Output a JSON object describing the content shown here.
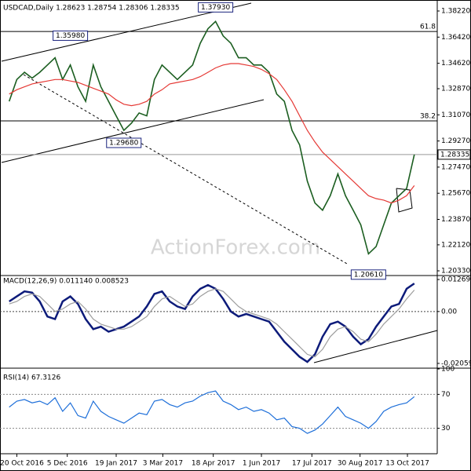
{
  "chart_data": [
    {
      "type": "line",
      "title": "USDCAD,Daily 1.28623 1.28754 1.28306 1.28335",
      "watermark": "ActionForex.com",
      "ylim": [
        1.2006,
        1.3876
      ],
      "yticks": [
        {
          "value": 1.3822,
          "label": "1.38220"
        },
        {
          "value": 1.3642,
          "label": "1.36420"
        },
        {
          "value": 1.3462,
          "label": "1.34620"
        },
        {
          "value": 1.3287,
          "label": "1.32870"
        },
        {
          "value": 1.3107,
          "label": "1.31070"
        },
        {
          "value": 1.2927,
          "label": "1.29270"
        },
        {
          "value": 1.2747,
          "label": "1.27470"
        },
        {
          "value": 1.2567,
          "label": "1.25670"
        },
        {
          "value": 1.2387,
          "label": "1.23870"
        },
        {
          "value": 1.2212,
          "label": "1.22120"
        },
        {
          "value": 1.2033,
          "label": "1.20330"
        }
      ],
      "last_price": 1.28335,
      "series": [
        {
          "name": "USDCAD",
          "color": "#1b5e20",
          "values": [
            1.32,
            1.335,
            1.34,
            1.336,
            1.34,
            1.345,
            1.35,
            1.335,
            1.345,
            1.33,
            1.32,
            1.345,
            1.33,
            1.32,
            1.31,
            1.3,
            1.305,
            1.312,
            1.31,
            1.335,
            1.345,
            1.34,
            1.335,
            1.34,
            1.345,
            1.36,
            1.37,
            1.375,
            1.365,
            1.36,
            1.35,
            1.35,
            1.345,
            1.345,
            1.34,
            1.325,
            1.32,
            1.3,
            1.29,
            1.265,
            1.25,
            1.245,
            1.255,
            1.27,
            1.255,
            1.245,
            1.235,
            1.215,
            1.22,
            1.235,
            1.25,
            1.255,
            1.26,
            1.28335
          ]
        },
        {
          "name": "MA",
          "color": "#e53935",
          "values": [
            1.325,
            1.328,
            1.33,
            1.332,
            1.333,
            1.334,
            1.335,
            1.335,
            1.334,
            1.333,
            1.331,
            1.329,
            1.327,
            1.325,
            1.321,
            1.318,
            1.317,
            1.318,
            1.32,
            1.325,
            1.328,
            1.332,
            1.333,
            1.334,
            1.335,
            1.337,
            1.34,
            1.343,
            1.345,
            1.346,
            1.346,
            1.345,
            1.344,
            1.342,
            1.339,
            1.335,
            1.328,
            1.32,
            1.31,
            1.3,
            1.292,
            1.285,
            1.28,
            1.275,
            1.27,
            1.265,
            1.26,
            1.255,
            1.253,
            1.252,
            1.25,
            1.252,
            1.255,
            1.262
          ]
        }
      ],
      "fib_levels": [
        {
          "label": "61.8",
          "value": 1.3681
        },
        {
          "label": "38.2",
          "value": 1.3065
        }
      ],
      "annotations": [
        {
          "label": "1.35980",
          "x": 8,
          "value": 1.3598
        },
        {
          "label": "1.29680",
          "x": 15,
          "value": 1.2968
        },
        {
          "label": "1.37930",
          "x": 27,
          "value": 1.3793
        },
        {
          "label": "1.20610",
          "x": 47,
          "value": 1.2061
        }
      ]
    },
    {
      "type": "line",
      "title": "MACD(12,26,9) 0.011140 0.008523",
      "ylim": [
        -0.02187,
        0.01397
      ],
      "yticks": [
        0.012698,
        {
          "value": 0,
          "label": "0.00"
        },
        -0.020599
      ],
      "series": [
        {
          "name": "MACD",
          "color": "#0d1b7a",
          "values": [
            0.004,
            0.006,
            0.008,
            0.0075,
            0.004,
            -0.002,
            -0.003,
            0.004,
            0.006,
            0.003,
            -0.003,
            -0.007,
            -0.006,
            -0.008,
            -0.007,
            -0.006,
            -0.004,
            -0.002,
            0.002,
            0.007,
            0.008,
            0.004,
            0.002,
            0.001,
            0.006,
            0.009,
            0.0105,
            0.009,
            0.005,
            0.0,
            -0.002,
            -0.001,
            -0.002,
            -0.003,
            -0.004,
            -0.008,
            -0.012,
            -0.015,
            -0.018,
            -0.02,
            -0.017,
            -0.01,
            -0.005,
            -0.004,
            -0.006,
            -0.01,
            -0.013,
            -0.011,
            -0.006,
            -0.002,
            0.002,
            0.003,
            0.009,
            0.01114
          ]
        },
        {
          "name": "Signal",
          "color": "#9e9e9e",
          "values": [
            0.003,
            0.004,
            0.006,
            0.007,
            0.006,
            0.003,
            0.0,
            0.001,
            0.003,
            0.004,
            0.001,
            -0.003,
            -0.005,
            -0.006,
            -0.007,
            -0.007,
            -0.006,
            -0.004,
            -0.002,
            0.002,
            0.005,
            0.006,
            0.004,
            0.002,
            0.003,
            0.006,
            0.008,
            0.009,
            0.008,
            0.005,
            0.002,
            0.0,
            -0.001,
            -0.002,
            -0.003,
            -0.005,
            -0.008,
            -0.011,
            -0.014,
            -0.017,
            -0.018,
            -0.015,
            -0.01,
            -0.007,
            -0.006,
            -0.008,
            -0.011,
            -0.012,
            -0.009,
            -0.005,
            -0.002,
            0.001,
            0.005,
            0.008523
          ]
        }
      ]
    },
    {
      "type": "line",
      "title": "RSI(14) 67.3126",
      "ylim": [
        0,
        100
      ],
      "yticks": [
        100,
        70,
        30
      ],
      "levels": [
        70,
        30
      ],
      "xlim": [
        -1.2,
        56
      ],
      "xticks": [
        {
          "value": 1,
          "label": "20 Oct 2016"
        },
        {
          "value": 7.6,
          "label": "5 Dec 2016"
        },
        {
          "value": 14,
          "label": "19 Jan 2017"
        },
        {
          "value": 20.1,
          "label": "3 Mar 2017"
        },
        {
          "value": 26.7,
          "label": "18 Apr 2017"
        },
        {
          "value": 33,
          "label": "1 Jun 2017"
        },
        {
          "value": 39.6,
          "label": "17 Jul 2017"
        },
        {
          "value": 45.9,
          "label": "30 Aug 2017"
        },
        {
          "value": 52.1,
          "label": "13 Oct 2017"
        }
      ],
      "series": [
        {
          "name": "RSI",
          "color": "#1e6fd9",
          "values": [
            55,
            62,
            64,
            60,
            62,
            58,
            66,
            50,
            60,
            45,
            42,
            62,
            50,
            44,
            40,
            36,
            42,
            48,
            46,
            62,
            64,
            58,
            55,
            60,
            62,
            68,
            72,
            74,
            62,
            58,
            52,
            55,
            50,
            52,
            48,
            40,
            42,
            32,
            30,
            24,
            28,
            35,
            45,
            55,
            44,
            40,
            36,
            30,
            38,
            50,
            55,
            58,
            60,
            67.3126
          ]
        }
      ]
    }
  ]
}
